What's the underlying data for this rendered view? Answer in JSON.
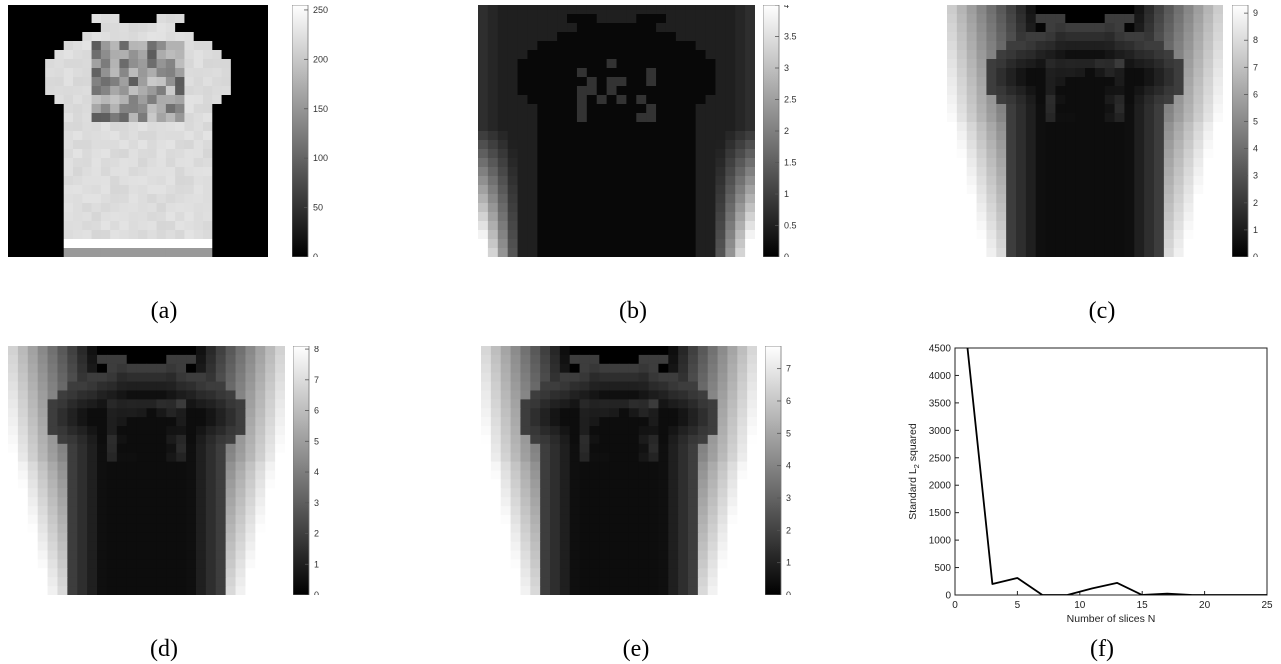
{
  "panels": [
    {
      "caption": "(a)",
      "colorbar_ticks": [
        "0",
        "50",
        "100",
        "150",
        "200",
        "250"
      ],
      "cmax": 255
    },
    {
      "caption": "(b)",
      "colorbar_ticks": [
        "0",
        "0.5",
        "1",
        "1.5",
        "2",
        "2.5",
        "3",
        "3.5",
        "4"
      ],
      "cmax": 4
    },
    {
      "caption": "(c)",
      "colorbar_ticks": [
        "0",
        "1",
        "2",
        "3",
        "4",
        "5",
        "6",
        "7",
        "8",
        "9"
      ],
      "cmax": 9.3
    },
    {
      "caption": "(d)",
      "colorbar_ticks": [
        "0",
        "1",
        "2",
        "3",
        "4",
        "5",
        "6",
        "7",
        "8"
      ],
      "cmax": 8.1
    },
    {
      "caption": "(e)",
      "colorbar_ticks": [
        "0",
        "1",
        "2",
        "3",
        "4",
        "5",
        "6",
        "7"
      ],
      "cmax": 7.7
    }
  ],
  "chart_data": {
    "type": "line",
    "caption": "(f)",
    "title": "",
    "xlabel": "Number of slices N",
    "ylabel": "Standard L",
    "ylabel_sub": "2",
    "ylabel_tail": " squared",
    "xlim": [
      0,
      25
    ],
    "ylim": [
      0,
      4500
    ],
    "xticks": [
      "0",
      "5",
      "10",
      "15",
      "20",
      "25"
    ],
    "yticks": [
      "0",
      "500",
      "1000",
      "1500",
      "2000",
      "2500",
      "3000",
      "3500",
      "4000",
      "4500"
    ],
    "x": [
      1,
      3,
      5,
      7,
      9,
      11,
      13,
      15,
      17,
      19,
      21,
      23,
      25
    ],
    "y": [
      4500,
      200,
      310,
      0,
      0,
      120,
      220,
      0,
      25,
      0,
      0,
      0,
      0
    ],
    "color": "#000000",
    "grid": false
  }
}
